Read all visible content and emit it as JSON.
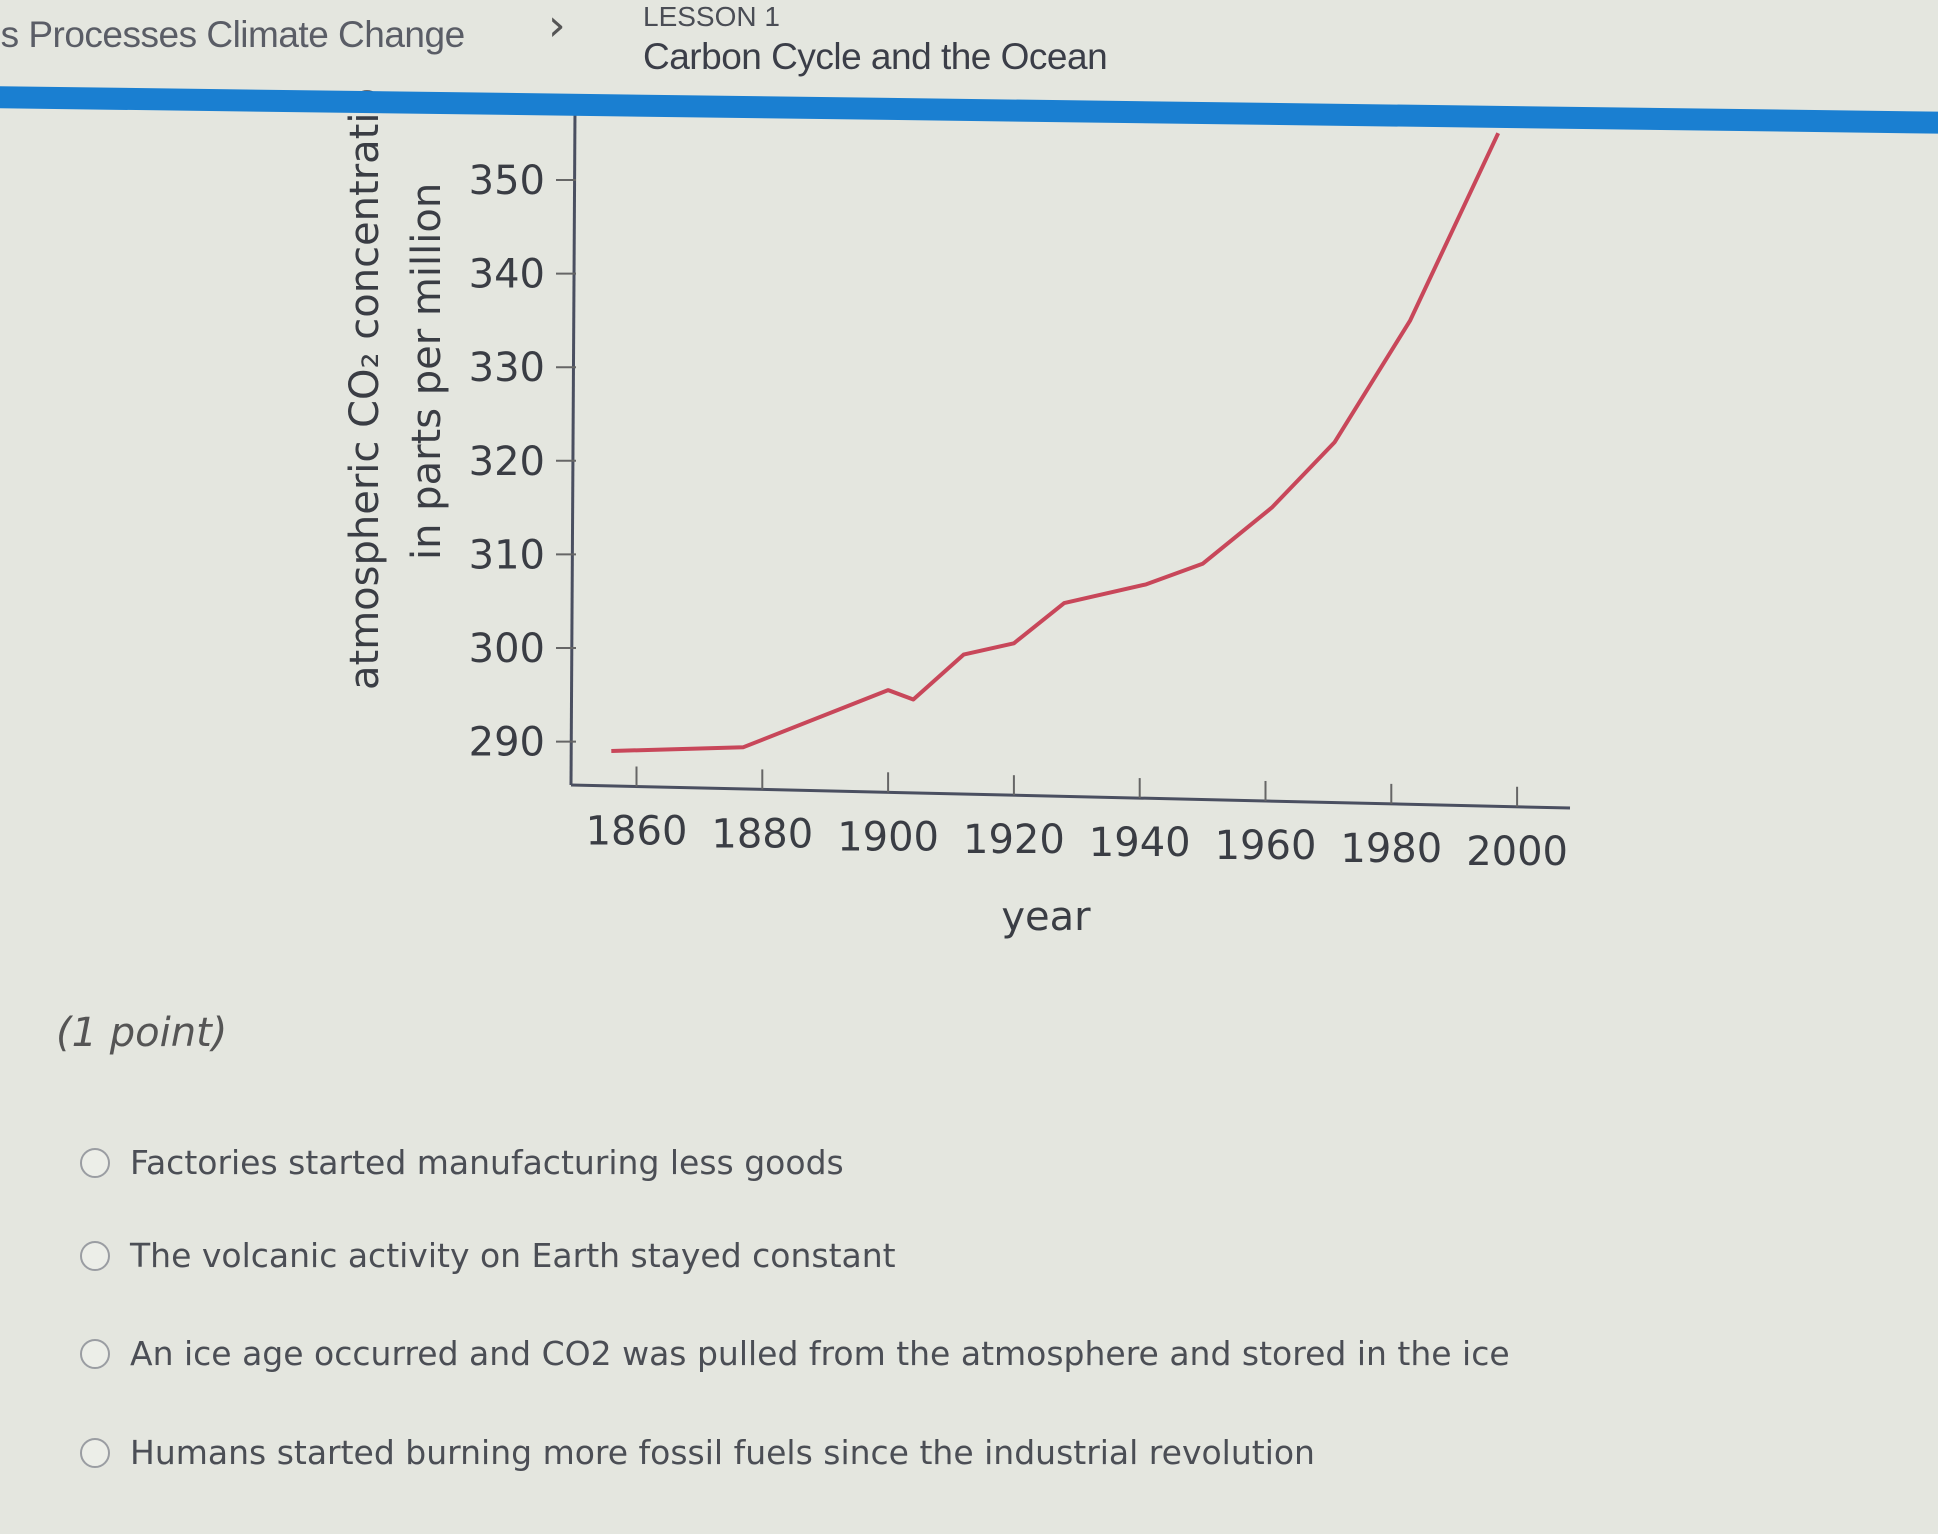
{
  "header": {
    "breadcrumb": "'s Processes Climate Change",
    "lesson_label": "LESSON 1",
    "title": "Carbon Cycle and the Ocean",
    "accent": "#1a7fd1"
  },
  "chart_data": {
    "type": "line",
    "xlabel": "year",
    "ylabel_line1": "atmospheric CO₂ concentratio",
    "ylabel_line2": "in parts per million",
    "x_ticks": [
      1860,
      1880,
      1900,
      1920,
      1940,
      1960,
      1980,
      2000
    ],
    "y_ticks": [
      290,
      300,
      310,
      320,
      330,
      340,
      350
    ],
    "xlim": [
      1850,
      2005
    ],
    "ylim": [
      285,
      355
    ],
    "line_color": "#c8475a",
    "series": [
      {
        "x": [
          1856,
          1877,
          1900,
          1904,
          1912,
          1920,
          1928,
          1941,
          1950,
          1961,
          1971,
          1983,
          1997
        ],
        "y": [
          289,
          289.4,
          295.5,
          294.5,
          299.3,
          300.5,
          304.8,
          306.8,
          309,
          315,
          322,
          335,
          355
        ]
      }
    ]
  },
  "question": {
    "points": "(1 point)",
    "options": [
      "Factories started manufacturing less goods",
      "The volcanic activity on Earth stayed constant",
      "An ice age occurred and CO2 was pulled from the atmosphere and stored in the ice",
      "Humans started burning more fossil fuels since the industrial revolution"
    ]
  }
}
